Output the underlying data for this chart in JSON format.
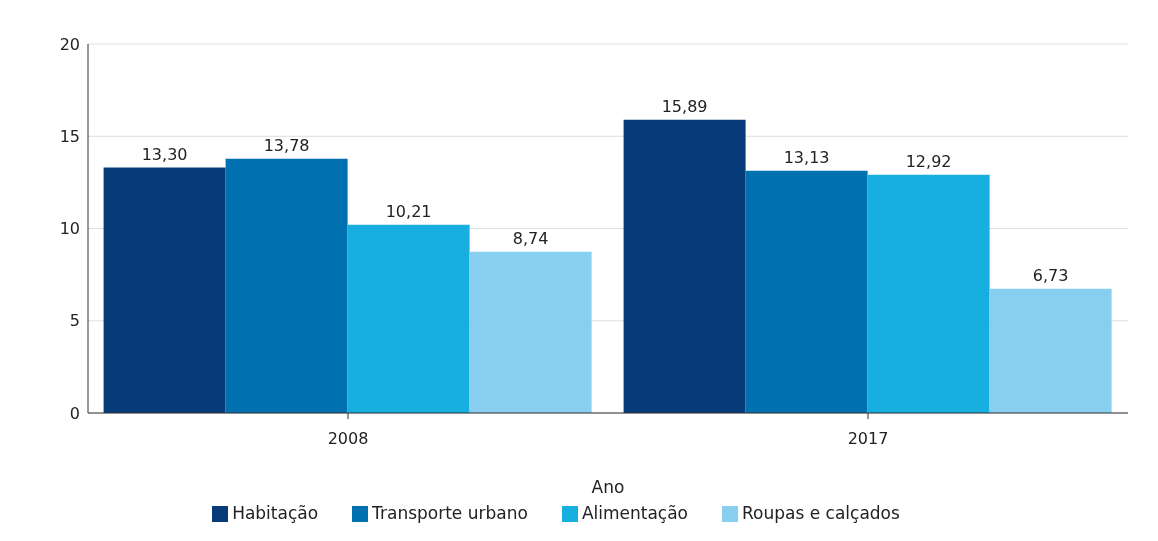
{
  "chart_data": {
    "type": "bar",
    "xlabel": "Ano",
    "categories": [
      "2008",
      "2017"
    ],
    "series": [
      {
        "name": "Habitação",
        "color": "#063a78",
        "values": [
          13.3,
          15.89
        ],
        "value_labels": [
          "13,30",
          "15,89"
        ]
      },
      {
        "name": "Transporte urbano",
        "color": "#0170b0",
        "values": [
          13.78,
          13.13
        ],
        "value_labels": [
          "13,78",
          "13,13"
        ]
      },
      {
        "name": "Alimentação",
        "color": "#17afe0",
        "values": [
          10.21,
          12.92
        ],
        "value_labels": [
          "10,21",
          "12,92"
        ]
      },
      {
        "name": "Roupas e calçados",
        "color": "#88cfef",
        "values": [
          8.74,
          6.73
        ],
        "value_labels": [
          "8,74",
          "6,73"
        ]
      }
    ],
    "ylim": [
      0,
      20
    ],
    "yticks": [
      0,
      5,
      10,
      15,
      20
    ],
    "grid": "y",
    "legend": "bottom"
  }
}
